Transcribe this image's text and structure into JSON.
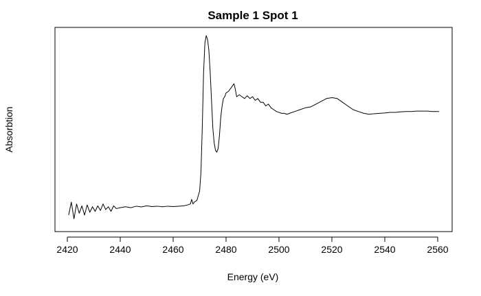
{
  "chart_data": {
    "type": "line",
    "title": "Sample 1 Spot 1",
    "xlabel": "Energy (eV)",
    "ylabel": "Absorbtion",
    "xlim": [
      2420,
      2560
    ],
    "ylim": [
      0.0,
      1.0
    ],
    "x_ticks": [
      2420,
      2440,
      2460,
      2480,
      2500,
      2520,
      2540,
      2560
    ],
    "y_ticks_visible": false,
    "grid": false,
    "series": [
      {
        "color": "#000000",
        "x": [
          2420.5,
          2421.5,
          2422.5,
          2423.5,
          2424.5,
          2425.5,
          2426.5,
          2427.5,
          2428.5,
          2429.5,
          2430.5,
          2431.5,
          2432.5,
          2433.5,
          2434.5,
          2435.5,
          2436.5,
          2437.5,
          2438.5,
          2440,
          2442,
          2444,
          2446,
          2448,
          2450,
          2452,
          2454,
          2456,
          2458,
          2460,
          2462,
          2464,
          2465.5,
          2466.5,
          2467,
          2467.5,
          2468,
          2469,
          2470,
          2470.5,
          2471,
          2471.5,
          2472,
          2472.5,
          2473,
          2473.5,
          2474,
          2474.5,
          2475,
          2475.5,
          2476,
          2476.5,
          2477,
          2477.5,
          2478,
          2478.5,
          2479,
          2479.5,
          2480,
          2481,
          2482,
          2483,
          2483.5,
          2484,
          2485,
          2486,
          2487,
          2488,
          2489,
          2490,
          2491,
          2492,
          2493,
          2494,
          2495,
          2496,
          2497,
          2498,
          2499,
          2500,
          2501,
          2502,
          2503,
          2504,
          2506,
          2508,
          2510,
          2512,
          2514,
          2516,
          2518,
          2520,
          2522,
          2524,
          2526,
          2528,
          2530,
          2532,
          2534,
          2536,
          2538,
          2540,
          2542,
          2544,
          2546,
          2548,
          2550,
          2552,
          2554,
          2556,
          2558,
          2559.5,
          2560.5
        ],
        "y": [
          0.03,
          0.1,
          0.01,
          0.09,
          0.04,
          0.08,
          0.03,
          0.085,
          0.045,
          0.075,
          0.05,
          0.08,
          0.055,
          0.09,
          0.06,
          0.075,
          0.05,
          0.08,
          0.065,
          0.07,
          0.075,
          0.07,
          0.078,
          0.074,
          0.08,
          0.076,
          0.078,
          0.075,
          0.078,
          0.076,
          0.078,
          0.08,
          0.085,
          0.09,
          0.115,
          0.09,
          0.1,
          0.11,
          0.16,
          0.26,
          0.5,
          0.8,
          0.96,
          1.0,
          0.98,
          0.92,
          0.8,
          0.65,
          0.5,
          0.42,
          0.38,
          0.37,
          0.39,
          0.46,
          0.56,
          0.62,
          0.66,
          0.67,
          0.69,
          0.7,
          0.72,
          0.74,
          0.71,
          0.67,
          0.68,
          0.67,
          0.66,
          0.675,
          0.66,
          0.67,
          0.65,
          0.66,
          0.64,
          0.64,
          0.62,
          0.63,
          0.61,
          0.6,
          0.59,
          0.585,
          0.58,
          0.58,
          0.575,
          0.58,
          0.59,
          0.6,
          0.61,
          0.615,
          0.63,
          0.645,
          0.66,
          0.665,
          0.66,
          0.64,
          0.62,
          0.6,
          0.59,
          0.58,
          0.575,
          0.578,
          0.58,
          0.582,
          0.585,
          0.585,
          0.588,
          0.59,
          0.59,
          0.592,
          0.592,
          0.592,
          0.59,
          0.59,
          0.59
        ]
      }
    ]
  }
}
